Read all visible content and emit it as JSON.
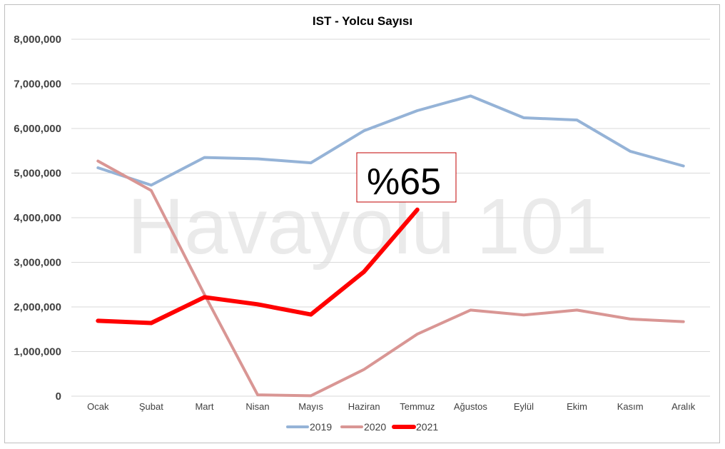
{
  "chart_data": {
    "type": "line",
    "title": "IST - Yolcu Sayısı",
    "categories": [
      "Ocak",
      "Şubat",
      "Mart",
      "Nisan",
      "Mayıs",
      "Haziran",
      "Temmuz",
      "Ağustos",
      "Eylül",
      "Ekim",
      "Kasım",
      "Aralık"
    ],
    "ylim": [
      0,
      8000000
    ],
    "yticks": [
      "0",
      "1,000,000",
      "2,000,000",
      "3,000,000",
      "4,000,000",
      "5,000,000",
      "6,000,000",
      "7,000,000",
      "8,000,000"
    ],
    "grid": true,
    "legend_position": "bottom",
    "series": [
      {
        "name": "2019",
        "color": "#95B3D7",
        "values": [
          5120000,
          4730000,
          5350000,
          5320000,
          5230000,
          5950000,
          6400000,
          6730000,
          6240000,
          6190000,
          5490000,
          5160000
        ]
      },
      {
        "name": "2020",
        "color": "#D99694",
        "values": [
          5270000,
          4610000,
          2280000,
          30000,
          10000,
          600000,
          1390000,
          1930000,
          1820000,
          1930000,
          1730000,
          1670000
        ]
      },
      {
        "name": "2021",
        "color": "#FF0000",
        "values": [
          1690000,
          1640000,
          2220000,
          2060000,
          1830000,
          2790000,
          4180000,
          null,
          null,
          null,
          null,
          null
        ]
      }
    ],
    "annotation": "%65",
    "watermark": "Havayolu 101"
  }
}
